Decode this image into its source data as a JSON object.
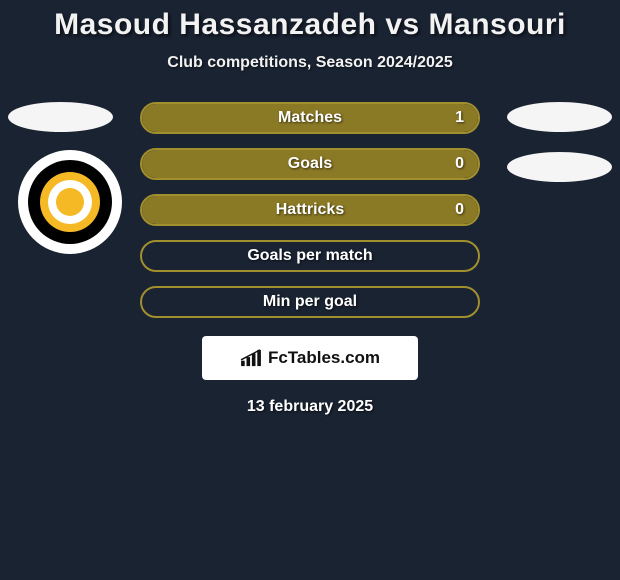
{
  "title": "Masoud Hassanzadeh vs Mansouri",
  "subtitle": "Club competitions, Season 2024/2025",
  "stats": {
    "primary_color": "#a18f2e",
    "fill_color": "#8a7925",
    "rows": [
      {
        "label": "Matches",
        "value": "1",
        "fill_pct": 100,
        "show_value": true
      },
      {
        "label": "Goals",
        "value": "0",
        "fill_pct": 100,
        "show_value": true
      },
      {
        "label": "Hattricks",
        "value": "0",
        "fill_pct": 100,
        "show_value": true
      },
      {
        "label": "Goals per match",
        "value": "",
        "fill_pct": 0,
        "show_value": false
      },
      {
        "label": "Min per goal",
        "value": "",
        "fill_pct": 0,
        "show_value": false
      }
    ]
  },
  "branding": {
    "text": "FcTables.com"
  },
  "date": "13 february 2025",
  "colors": {
    "background": "#1a2332",
    "text": "#f2f2f2",
    "badge": "#f5f5f5"
  }
}
